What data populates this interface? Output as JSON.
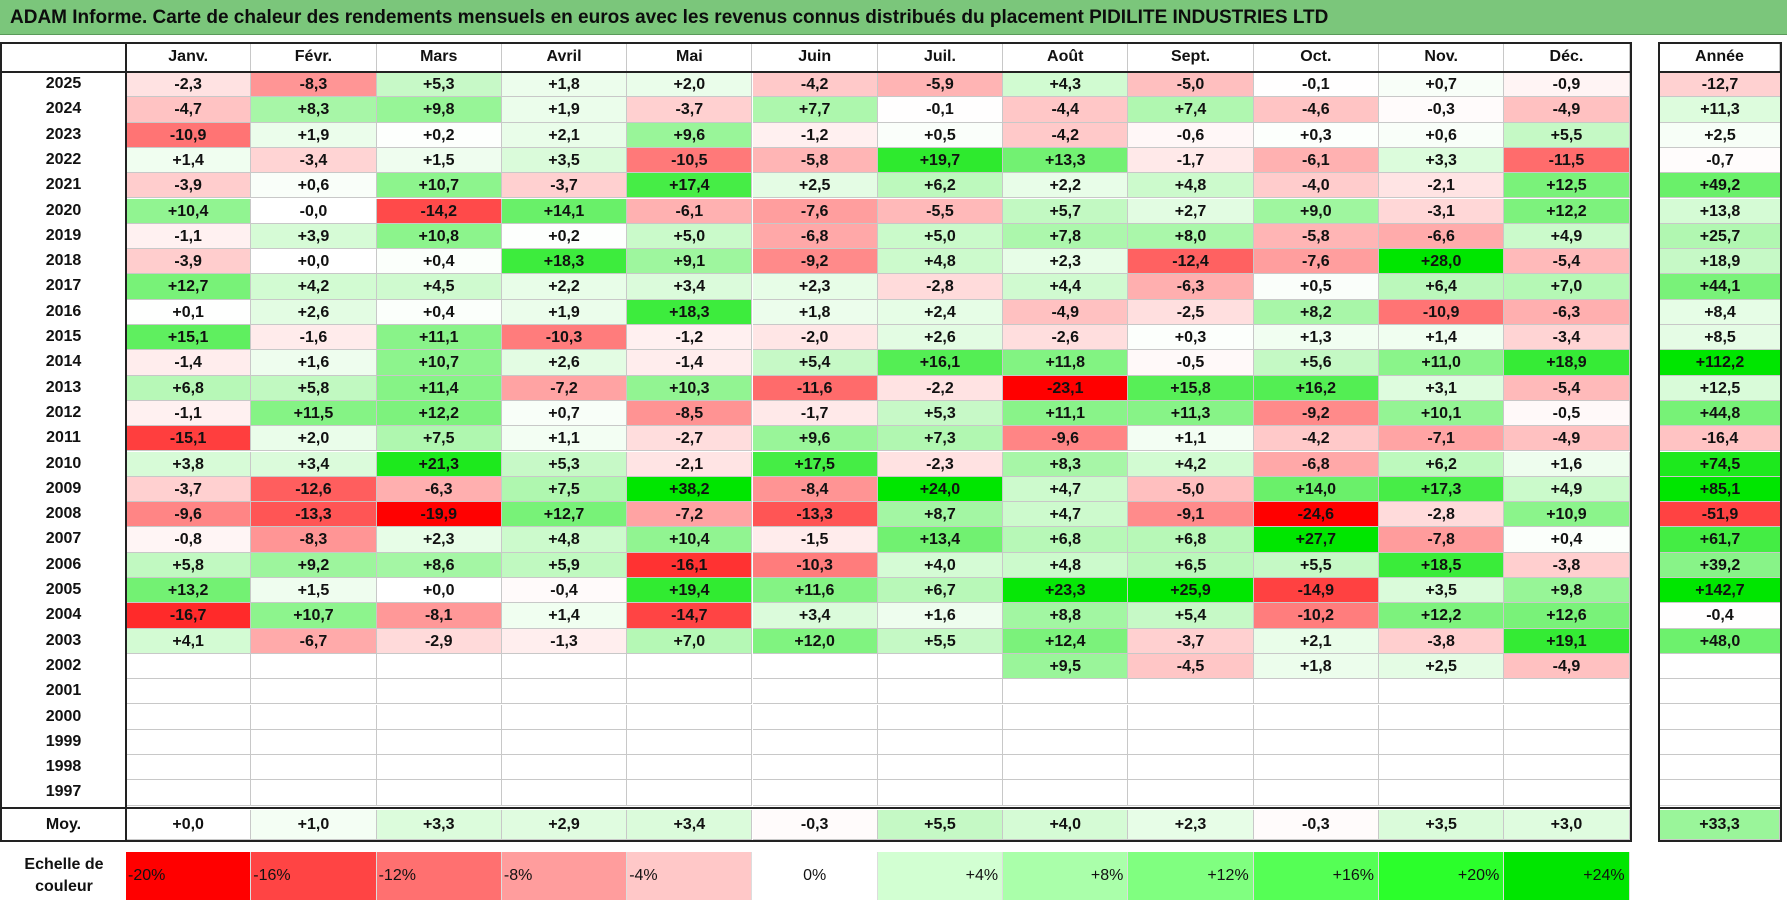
{
  "title": "ADAM Informe. Carte de chaleur des rendements mensuels en euros avec les revenus connus distribués du placement PIDILITE INDUSTRIES LTD",
  "chart_data": {
    "type": "heatmap",
    "months": [
      "Janv.",
      "Févr.",
      "Mars",
      "Avril",
      "Mai",
      "Juin",
      "Juil.",
      "Août",
      "Sept.",
      "Oct.",
      "Nov.",
      "Déc."
    ],
    "annual_header": "Année",
    "rows": [
      {
        "year": "2025",
        "values": [
          "-2,3",
          "-8,3",
          "+5,3",
          "+1,8",
          "+2,0",
          "-4,2",
          "-5,9",
          "+4,3",
          "-5,0",
          "-0,1",
          "+0,7",
          "-0,9"
        ],
        "annual": "-12,7"
      },
      {
        "year": "2024",
        "values": [
          "-4,7",
          "+8,3",
          "+9,8",
          "+1,9",
          "-3,7",
          "+7,7",
          "-0,1",
          "-4,4",
          "+7,4",
          "-4,6",
          "-0,3",
          "-4,9"
        ],
        "annual": "+11,3"
      },
      {
        "year": "2023",
        "values": [
          "-10,9",
          "+1,9",
          "+0,2",
          "+2,1",
          "+9,6",
          "-1,2",
          "+0,5",
          "-4,2",
          "-0,6",
          "+0,3",
          "+0,6",
          "+5,5"
        ],
        "annual": "+2,5"
      },
      {
        "year": "2022",
        "values": [
          "+1,4",
          "-3,4",
          "+1,5",
          "+3,5",
          "-10,5",
          "-5,8",
          "+19,7",
          "+13,3",
          "-1,7",
          "-6,1",
          "+3,3",
          "-11,5"
        ],
        "annual": "-0,7"
      },
      {
        "year": "2021",
        "values": [
          "-3,9",
          "+0,6",
          "+10,7",
          "-3,7",
          "+17,4",
          "+2,5",
          "+6,2",
          "+2,2",
          "+4,8",
          "-4,0",
          "-2,1",
          "+12,5"
        ],
        "annual": "+49,2"
      },
      {
        "year": "2020",
        "values": [
          "+10,4",
          "-0,0",
          "-14,2",
          "+14,1",
          "-6,1",
          "-7,6",
          "-5,5",
          "+5,7",
          "+2,7",
          "+9,0",
          "-3,1",
          "+12,2"
        ],
        "annual": "+13,8"
      },
      {
        "year": "2019",
        "values": [
          "-1,1",
          "+3,9",
          "+10,8",
          "+0,2",
          "+5,0",
          "-6,8",
          "+5,0",
          "+7,8",
          "+8,0",
          "-5,8",
          "-6,6",
          "+4,9"
        ],
        "annual": "+25,7"
      },
      {
        "year": "2018",
        "values": [
          "-3,9",
          "+0,0",
          "+0,4",
          "+18,3",
          "+9,1",
          "-9,2",
          "+4,8",
          "+2,3",
          "-12,4",
          "-7,6",
          "+28,0",
          "-5,4"
        ],
        "annual": "+18,9"
      },
      {
        "year": "2017",
        "values": [
          "+12,7",
          "+4,2",
          "+4,5",
          "+2,2",
          "+3,4",
          "+2,3",
          "-2,8",
          "+4,4",
          "-6,3",
          "+0,5",
          "+6,4",
          "+7,0"
        ],
        "annual": "+44,1"
      },
      {
        "year": "2016",
        "values": [
          "+0,1",
          "+2,6",
          "+0,4",
          "+1,9",
          "+18,3",
          "+1,8",
          "+2,4",
          "-4,9",
          "-2,5",
          "+8,2",
          "-10,9",
          "-6,3"
        ],
        "annual": "+8,4"
      },
      {
        "year": "2015",
        "values": [
          "+15,1",
          "-1,6",
          "+11,1",
          "-10,3",
          "-1,2",
          "-2,0",
          "+2,6",
          "-2,6",
          "+0,3",
          "+1,3",
          "+1,4",
          "-3,4"
        ],
        "annual": "+8,5"
      },
      {
        "year": "2014",
        "values": [
          "-1,4",
          "+1,6",
          "+10,7",
          "+2,6",
          "-1,4",
          "+5,4",
          "+16,1",
          "+11,8",
          "-0,5",
          "+5,6",
          "+11,0",
          "+18,9"
        ],
        "annual": "+112,2"
      },
      {
        "year": "2013",
        "values": [
          "+6,8",
          "+5,8",
          "+11,4",
          "-7,2",
          "+10,3",
          "-11,6",
          "-2,2",
          "-23,1",
          "+15,8",
          "+16,2",
          "+3,1",
          "-5,4"
        ],
        "annual": "+12,5"
      },
      {
        "year": "2012",
        "values": [
          "-1,1",
          "+11,5",
          "+12,2",
          "+0,7",
          "-8,5",
          "-1,7",
          "+5,3",
          "+11,1",
          "+11,3",
          "-9,2",
          "+10,1",
          "-0,5"
        ],
        "annual": "+44,8"
      },
      {
        "year": "2011",
        "values": [
          "-15,1",
          "+2,0",
          "+7,5",
          "+1,1",
          "-2,7",
          "+9,6",
          "+7,3",
          "-9,6",
          "+1,1",
          "-4,2",
          "-7,1",
          "-4,9"
        ],
        "annual": "-16,4"
      },
      {
        "year": "2010",
        "values": [
          "+3,8",
          "+3,4",
          "+21,3",
          "+5,3",
          "-2,1",
          "+17,5",
          "-2,3",
          "+8,3",
          "+4,2",
          "-6,8",
          "+6,2",
          "+1,6"
        ],
        "annual": "+74,5"
      },
      {
        "year": "2009",
        "values": [
          "-3,7",
          "-12,6",
          "-6,3",
          "+7,5",
          "+38,2",
          "-8,4",
          "+24,0",
          "+4,7",
          "-5,0",
          "+14,0",
          "+17,3",
          "+4,9"
        ],
        "annual": "+85,1"
      },
      {
        "year": "2008",
        "values": [
          "-9,6",
          "-13,3",
          "-19,9",
          "+12,7",
          "-7,2",
          "-13,3",
          "+8,7",
          "+4,7",
          "-9,1",
          "-24,6",
          "-2,8",
          "+10,9"
        ],
        "annual": "-51,9"
      },
      {
        "year": "2007",
        "values": [
          "-0,8",
          "-8,3",
          "+2,3",
          "+4,8",
          "+10,4",
          "-1,5",
          "+13,4",
          "+6,8",
          "+6,8",
          "+27,7",
          "-7,8",
          "+0,4"
        ],
        "annual": "+61,7"
      },
      {
        "year": "2006",
        "values": [
          "+5,8",
          "+9,2",
          "+8,6",
          "+5,9",
          "-16,1",
          "-10,3",
          "+4,0",
          "+4,8",
          "+6,5",
          "+5,5",
          "+18,5",
          "-3,8"
        ],
        "annual": "+39,2"
      },
      {
        "year": "2005",
        "values": [
          "+13,2",
          "+1,5",
          "+0,0",
          "-0,4",
          "+19,4",
          "+11,6",
          "+6,7",
          "+23,3",
          "+25,9",
          "-14,9",
          "+3,5",
          "+9,8"
        ],
        "annual": "+142,7"
      },
      {
        "year": "2004",
        "values": [
          "-16,7",
          "+10,7",
          "-8,1",
          "+1,4",
          "-14,7",
          "+3,4",
          "+1,6",
          "+8,8",
          "+5,4",
          "-10,2",
          "+12,2",
          "+12,6"
        ],
        "annual": "-0,4"
      },
      {
        "year": "2003",
        "values": [
          "+4,1",
          "-6,7",
          "-2,9",
          "-1,3",
          "+7,0",
          "+12,0",
          "+5,5",
          "+12,4",
          "-3,7",
          "+2,1",
          "-3,8",
          "+19,1"
        ],
        "annual": "+48,0"
      },
      {
        "year": "2002",
        "values": [
          "",
          "",
          "",
          "",
          "",
          "",
          "",
          "+9,5",
          "-4,5",
          "+1,8",
          "+2,5",
          "-4,9"
        ],
        "annual": ""
      },
      {
        "year": "2001",
        "values": [
          "",
          "",
          "",
          "",
          "",
          "",
          "",
          "",
          "",
          "",
          "",
          ""
        ],
        "annual": ""
      },
      {
        "year": "2000",
        "values": [
          "",
          "",
          "",
          "",
          "",
          "",
          "",
          "",
          "",
          "",
          "",
          ""
        ],
        "annual": ""
      },
      {
        "year": "1999",
        "values": [
          "",
          "",
          "",
          "",
          "",
          "",
          "",
          "",
          "",
          "",
          "",
          ""
        ],
        "annual": ""
      },
      {
        "year": "1998",
        "values": [
          "",
          "",
          "",
          "",
          "",
          "",
          "",
          "",
          "",
          "",
          "",
          ""
        ],
        "annual": ""
      },
      {
        "year": "1997",
        "values": [
          "",
          "",
          "",
          "",
          "",
          "",
          "",
          "",
          "",
          "",
          "",
          ""
        ],
        "annual": ""
      }
    ],
    "average": {
      "label": "Moy.",
      "values": [
        "+0,0",
        "+1,0",
        "+3,3",
        "+2,9",
        "+3,4",
        "-0,3",
        "+5,5",
        "+4,0",
        "+2,3",
        "-0,3",
        "+3,5",
        "+3,0"
      ],
      "annual": "+33,3"
    },
    "color_scale": {
      "label": "Echelle de couleur",
      "stops": [
        "-20%",
        "-16%",
        "-12%",
        "-8%",
        "-4%",
        "0%",
        "+4%",
        "+8%",
        "+12%",
        "+16%",
        "+20%",
        "+24%"
      ],
      "colors": [
        "#ff0000",
        "#ff4444",
        "#ff7070",
        "#ff9d9d",
        "#ffc8c8",
        "#ffffff",
        "#d2ffd2",
        "#aaffaa",
        "#80ff80",
        "#55ff55",
        "#2bff2b",
        "#00e600"
      ]
    }
  }
}
